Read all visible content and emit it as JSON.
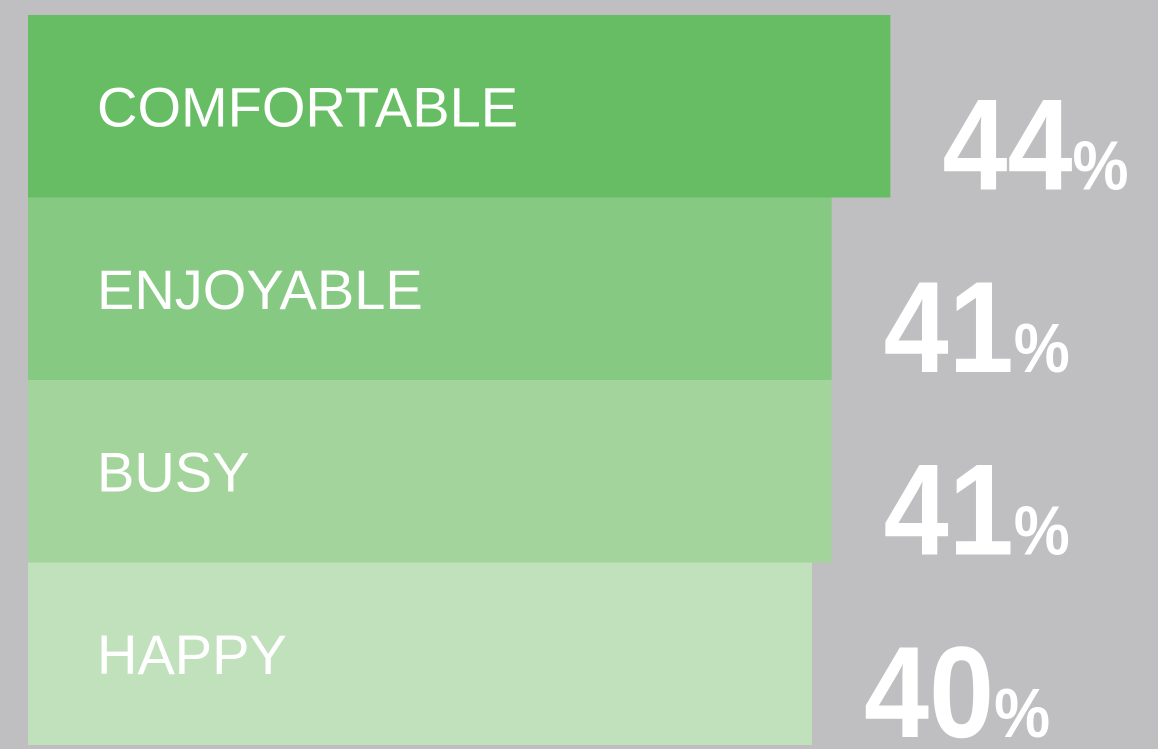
{
  "chart_data": {
    "type": "bar",
    "orientation": "horizontal",
    "categories": [
      "COMFORTABLE",
      "ENJOYABLE",
      "BUSY",
      "HAPPY"
    ],
    "values": [
      44,
      41,
      41,
      40
    ],
    "value_labels": [
      "44%",
      "41%",
      "41%",
      "40%"
    ],
    "colors": [
      "#66bd63",
      "#86c982",
      "#a3d49b",
      "#c1e1bd"
    ]
  }
}
